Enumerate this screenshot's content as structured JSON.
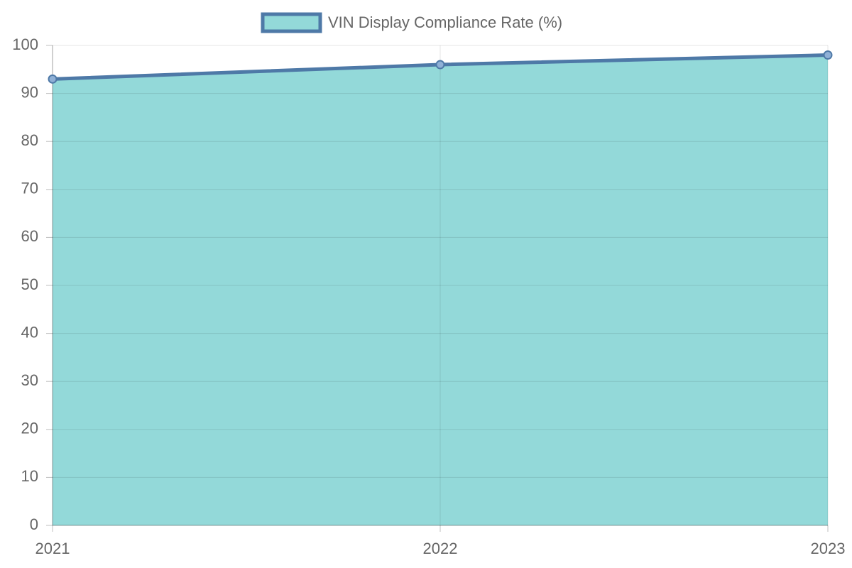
{
  "chart_data": {
    "type": "area",
    "categories": [
      "2021",
      "2022",
      "2023"
    ],
    "series": [
      {
        "name": "VIN Display Compliance Rate (%)",
        "color": "#4e79a7",
        "fill": "#93d9d9",
        "values": [
          93,
          96,
          98
        ]
      }
    ],
    "ylim": [
      0,
      100
    ],
    "yticks": [
      0,
      10,
      20,
      30,
      40,
      50,
      60,
      70,
      80,
      90,
      100
    ],
    "grid": true,
    "legend": "top"
  }
}
